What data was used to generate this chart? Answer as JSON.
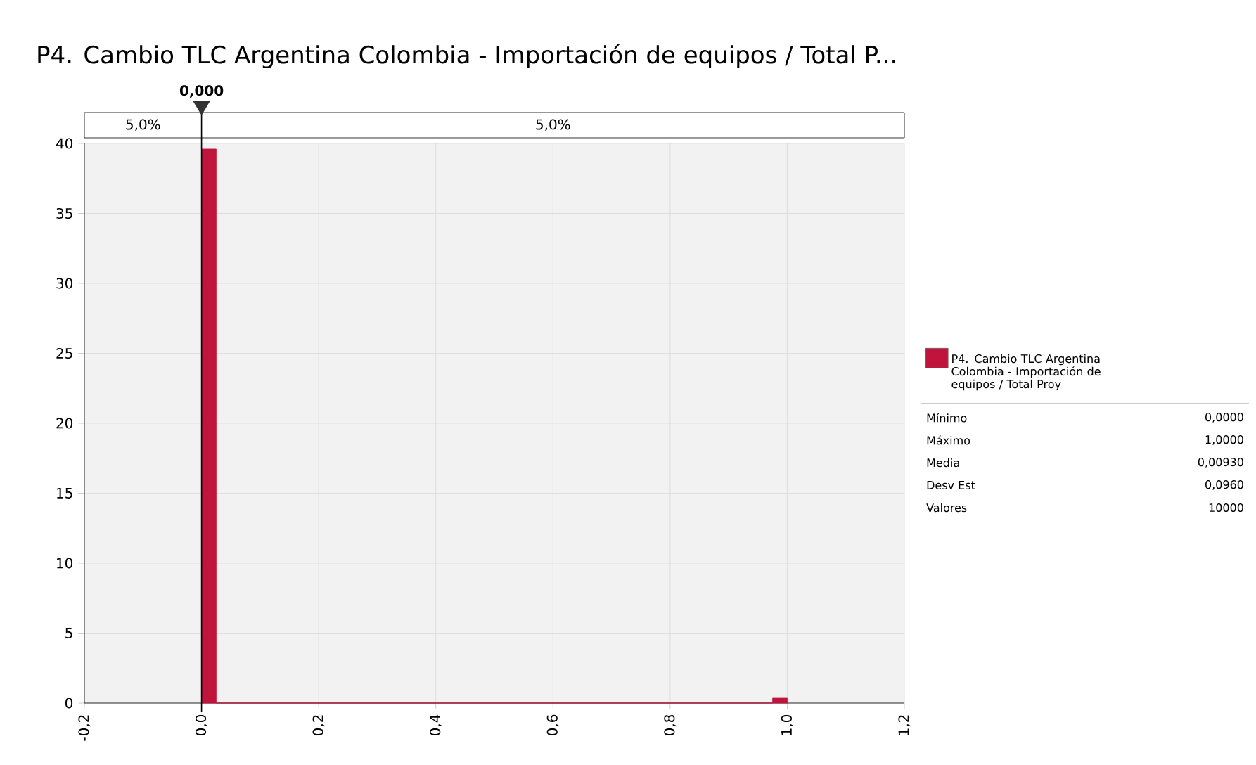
{
  "chart_data": {
    "type": "histogram",
    "title": "P4. Cambio TLC Argentina Colombia - Importación de equipos / Total P...",
    "bins": [
      0,
      0.025,
      0.05,
      0.075,
      0.1,
      0.125,
      0.15,
      0.175,
      0.2,
      0.225,
      0.25,
      0.275,
      0.3,
      0.325,
      0.35,
      0.375,
      0.4,
      0.425,
      0.45,
      0.475,
      0.5,
      0.525,
      0.55,
      0.575,
      0.6,
      0.625,
      0.65,
      0.675,
      0.7,
      0.725,
      0.75,
      0.775,
      0.8,
      0.825,
      0.85,
      0.875,
      0.9,
      0.925,
      0.95,
      0.975,
      1.0
    ],
    "series": [
      {
        "name": "P4. Cambio TLC Argentina Colombia - Importación de equipos / Total Proy",
        "color": "#c0143c",
        "values": [
          39.6,
          0,
          0,
          0,
          0,
          0,
          0,
          0,
          0,
          0,
          0,
          0,
          0,
          0,
          0,
          0,
          0,
          0,
          0,
          0,
          0,
          0,
          0,
          0,
          0,
          0,
          0,
          0,
          0,
          0,
          0,
          0,
          0,
          0,
          0,
          0,
          0,
          0,
          0,
          0.4
        ]
      }
    ],
    "xlim": [
      -0.2,
      1.2
    ],
    "xticks": [
      {
        "value": -0.2,
        "label": "-0,2"
      },
      {
        "value": 0,
        "label": "0,0"
      },
      {
        "value": 0.2,
        "label": "0,2"
      },
      {
        "value": 0.4,
        "label": "0,4"
      },
      {
        "value": 0.6,
        "label": "0,6"
      },
      {
        "value": 0.8,
        "label": "0,8"
      },
      {
        "value": 1.0,
        "label": "1,0"
      },
      {
        "value": 1.2,
        "label": "1,2"
      }
    ],
    "ylim": [
      0,
      40
    ],
    "yticks": [
      0,
      5,
      10,
      15,
      20,
      25,
      30,
      35,
      40
    ],
    "grid": true,
    "legend": "right",
    "ref_lines": [
      {
        "axis": "x",
        "value": 0,
        "label": "0,000",
        "color": "#000000"
      }
    ],
    "annotations": [
      "5,0%",
      "5,0%",
      "Mínimo",
      "0,0000",
      "Máximo",
      "1,0000",
      "Media",
      "0,00930",
      "Desv Est",
      "0,0960",
      "Valores",
      "10000"
    ]
  }
}
